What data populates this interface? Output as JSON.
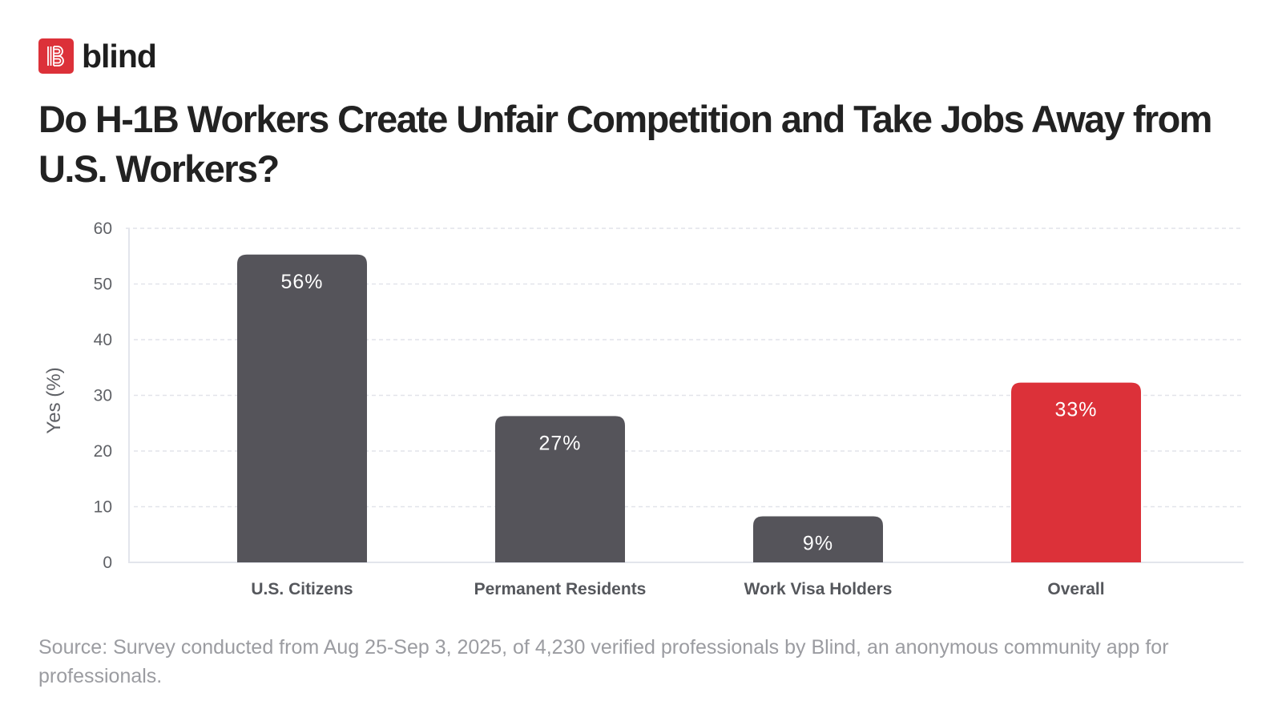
{
  "brand": {
    "name": "blind",
    "logo_letter": "B",
    "color": "#dc3139"
  },
  "chart_data": {
    "type": "bar",
    "title": "Do H-1B Workers Create Unfair Competition and Take Jobs Away from U.S. Workers?",
    "xlabel": "",
    "ylabel": "Yes (%)",
    "ylim": [
      0,
      60
    ],
    "yticks": [
      0,
      10,
      20,
      30,
      40,
      50,
      60
    ],
    "grid": true,
    "categories": [
      "U.S. Citizens",
      "Permanent Residents",
      "Work Visa Holders",
      "Overall"
    ],
    "values": [
      56,
      27,
      9,
      33
    ],
    "data_labels": [
      "56%",
      "27%",
      "9%",
      "33%"
    ],
    "colors": [
      "#55545a",
      "#55545a",
      "#55545a",
      "#dc3139"
    ],
    "source": "Source: Survey conducted from Aug 25-Sep 3, 2025, of 4,230 verified professionals by Blind, an anonymous community app for professionals."
  }
}
